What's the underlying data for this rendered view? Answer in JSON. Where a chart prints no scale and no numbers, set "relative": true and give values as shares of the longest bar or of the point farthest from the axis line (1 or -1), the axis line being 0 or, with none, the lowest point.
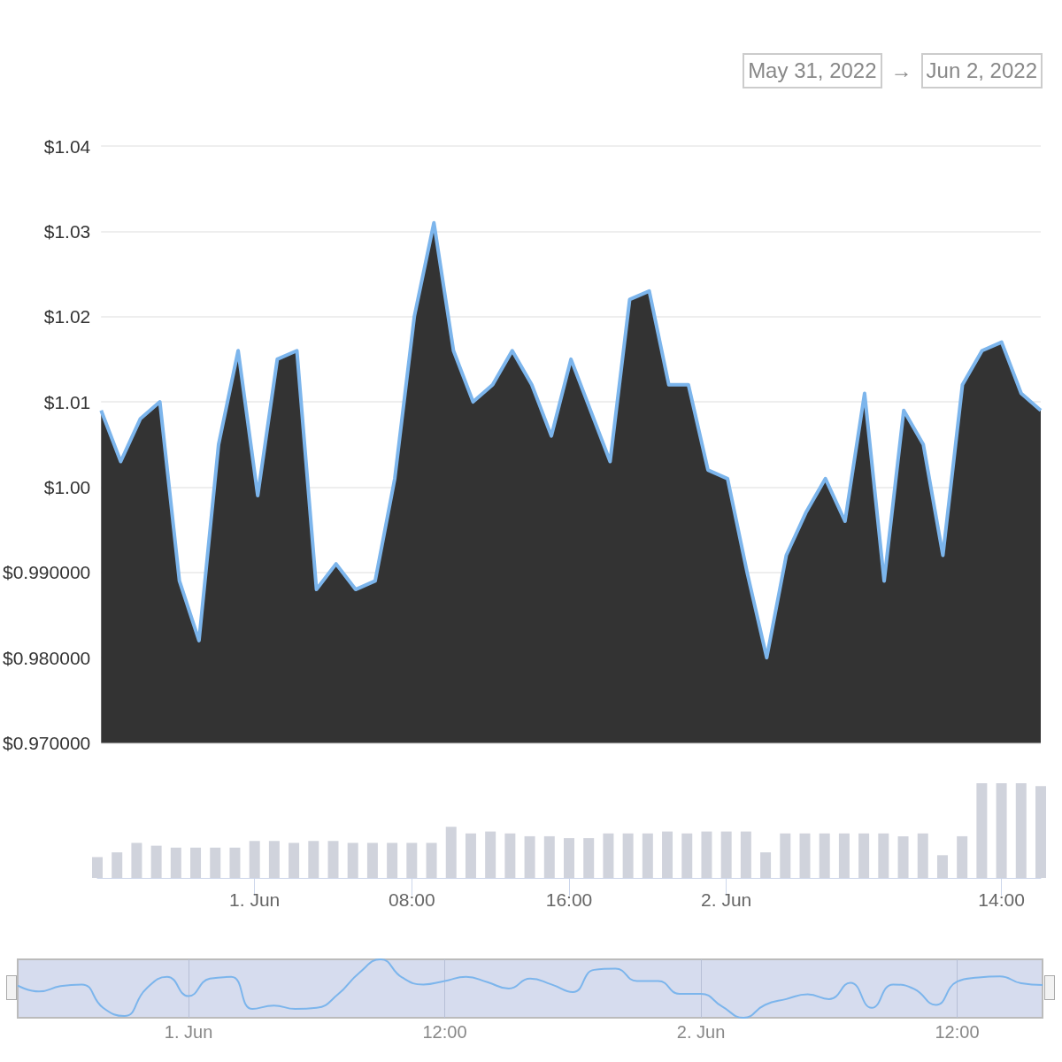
{
  "chart_data": [
    {
      "type": "area",
      "annotations": [
        "May 31, 2022",
        "→",
        "Jun 2, 2022"
      ],
      "x": [
        "2022-05-31T16:00",
        "2022-05-31T17:00",
        "2022-05-31T18:00",
        "2022-05-31T19:00",
        "2022-05-31T20:00",
        "2022-05-31T21:00",
        "2022-05-31T22:00",
        "2022-05-31T23:00",
        "2022-06-01T00:00",
        "2022-06-01T01:00",
        "2022-06-01T02:00",
        "2022-06-01T03:00",
        "2022-06-01T04:00",
        "2022-06-01T05:00",
        "2022-06-01T06:00",
        "2022-06-01T07:00",
        "2022-06-01T08:00",
        "2022-06-01T09:00",
        "2022-06-01T10:00",
        "2022-06-01T11:00",
        "2022-06-01T12:00",
        "2022-06-01T13:00",
        "2022-06-01T14:00",
        "2022-06-01T15:00",
        "2022-06-01T16:00",
        "2022-06-01T17:00",
        "2022-06-01T18:00",
        "2022-06-01T19:00",
        "2022-06-01T20:00",
        "2022-06-01T21:00",
        "2022-06-01T22:00",
        "2022-06-01T23:00",
        "2022-06-02T00:00",
        "2022-06-02T01:00",
        "2022-06-02T02:00",
        "2022-06-02T03:00",
        "2022-06-02T04:00",
        "2022-06-02T05:00",
        "2022-06-02T06:00",
        "2022-06-02T07:00",
        "2022-06-02T08:00",
        "2022-06-02T09:00",
        "2022-06-02T10:00",
        "2022-06-02T11:00",
        "2022-06-02T12:00",
        "2022-06-02T13:00",
        "2022-06-02T14:00",
        "2022-06-02T15:00",
        "2022-06-02T16:00"
      ],
      "series": [
        {
          "color": "#7cb5ec",
          "values": [
            1.009,
            1.003,
            1.008,
            1.01,
            0.989,
            0.982,
            1.005,
            1.016,
            0.999,
            1.015,
            1.016,
            0.988,
            0.991,
            0.988,
            0.989,
            1.001,
            1.02,
            1.031,
            1.016,
            1.01,
            1.012,
            1.016,
            1.012,
            1.006,
            1.015,
            1.009,
            1.003,
            1.022,
            1.023,
            1.012,
            1.012,
            1.002,
            1.001,
            0.99,
            0.98,
            0.992,
            0.997,
            1.001,
            0.996,
            1.011,
            0.989,
            1.009,
            1.005,
            0.992,
            1.012,
            1.016,
            1.017,
            1.011,
            1.009
          ]
        }
      ],
      "xlim": [
        "2022-05-31T16:00",
        "2022-06-02T16:00"
      ],
      "ylim": [
        0.97,
        1.04
      ],
      "yticks": [
        {
          "value": 0.97,
          "label": "$0.970000"
        },
        {
          "value": 0.98,
          "label": "$0.980000"
        },
        {
          "value": 0.99,
          "label": "$0.990000"
        },
        {
          "value": 1.0,
          "label": "$1.00"
        },
        {
          "value": 1.01,
          "label": "$1.01"
        },
        {
          "value": 1.02,
          "label": "$1.02"
        },
        {
          "value": 1.03,
          "label": "$1.03"
        },
        {
          "value": 1.04,
          "label": "$1.04"
        }
      ],
      "grid": "y",
      "tick_labels": "y"
    },
    {
      "type": "bar",
      "relative": true,
      "x": [
        "2022-05-31T16:00",
        "2022-05-31T17:00",
        "2022-05-31T18:00",
        "2022-05-31T19:00",
        "2022-05-31T20:00",
        "2022-05-31T21:00",
        "2022-05-31T22:00",
        "2022-05-31T23:00",
        "2022-06-01T00:00",
        "2022-06-01T01:00",
        "2022-06-01T02:00",
        "2022-06-01T03:00",
        "2022-06-01T04:00",
        "2022-06-01T05:00",
        "2022-06-01T06:00",
        "2022-06-01T07:00",
        "2022-06-01T08:00",
        "2022-06-01T09:00",
        "2022-06-01T10:00",
        "2022-06-01T11:00",
        "2022-06-01T12:00",
        "2022-06-01T13:00",
        "2022-06-01T14:00",
        "2022-06-01T15:00",
        "2022-06-01T16:00",
        "2022-06-01T17:00",
        "2022-06-01T18:00",
        "2022-06-01T19:00",
        "2022-06-01T20:00",
        "2022-06-01T21:00",
        "2022-06-01T22:00",
        "2022-06-01T23:00",
        "2022-06-02T00:00",
        "2022-06-02T01:00",
        "2022-06-02T02:00",
        "2022-06-02T03:00",
        "2022-06-02T04:00",
        "2022-06-02T05:00",
        "2022-06-02T06:00",
        "2022-06-02T07:00",
        "2022-06-02T08:00",
        "2022-06-02T09:00",
        "2022-06-02T10:00",
        "2022-06-02T11:00",
        "2022-06-02T12:00",
        "2022-06-02T13:00",
        "2022-06-02T14:00",
        "2022-06-02T15:00",
        "2022-06-02T16:00"
      ],
      "series": [
        {
          "color": "#d0d3dc",
          "values": [
            0.22,
            0.27,
            0.37,
            0.34,
            0.32,
            0.32,
            0.32,
            0.32,
            0.39,
            0.39,
            0.37,
            0.39,
            0.39,
            0.37,
            0.37,
            0.37,
            0.37,
            0.37,
            0.54,
            0.47,
            0.49,
            0.47,
            0.44,
            0.44,
            0.42,
            0.42,
            0.47,
            0.47,
            0.47,
            0.49,
            0.47,
            0.49,
            0.49,
            0.49,
            0.27,
            0.47,
            0.47,
            0.47,
            0.47,
            0.47,
            0.47,
            0.44,
            0.47,
            0.24,
            0.44,
            1,
            1,
            1,
            0.97
          ]
        }
      ],
      "xlim": [
        "2022-05-31T16:00",
        "2022-06-02T16:00"
      ],
      "xticks": [
        {
          "value": "2022-06-01T00:00",
          "label": "1. Jun"
        },
        {
          "value": "2022-06-01T08:00",
          "label": "08:00"
        },
        {
          "value": "2022-06-01T16:00",
          "label": "16:00"
        },
        {
          "value": "2022-06-02T00:00",
          "label": "2. Jun"
        },
        {
          "value": "2022-06-02T14:00",
          "label": "14:00"
        }
      ],
      "tick_labels": "x"
    },
    {
      "type": "line",
      "relative": true,
      "x": [
        "2022-05-31T16:00",
        "2022-05-31T17:00",
        "2022-05-31T18:00",
        "2022-05-31T19:00",
        "2022-05-31T20:00",
        "2022-05-31T21:00",
        "2022-05-31T22:00",
        "2022-05-31T23:00",
        "2022-06-01T00:00",
        "2022-06-01T01:00",
        "2022-06-01T02:00",
        "2022-06-01T03:00",
        "2022-06-01T04:00",
        "2022-06-01T05:00",
        "2022-06-01T06:00",
        "2022-06-01T07:00",
        "2022-06-01T08:00",
        "2022-06-01T09:00",
        "2022-06-01T10:00",
        "2022-06-01T11:00",
        "2022-06-01T12:00",
        "2022-06-01T13:00",
        "2022-06-01T14:00",
        "2022-06-01T15:00",
        "2022-06-01T16:00",
        "2022-06-01T17:00",
        "2022-06-01T18:00",
        "2022-06-01T19:00",
        "2022-06-01T20:00",
        "2022-06-01T21:00",
        "2022-06-01T22:00",
        "2022-06-01T23:00",
        "2022-06-02T00:00",
        "2022-06-02T01:00",
        "2022-06-02T02:00",
        "2022-06-02T03:00",
        "2022-06-02T04:00",
        "2022-06-02T05:00",
        "2022-06-02T06:00",
        "2022-06-02T07:00",
        "2022-06-02T08:00",
        "2022-06-02T09:00",
        "2022-06-02T10:00",
        "2022-06-02T11:00",
        "2022-06-02T12:00",
        "2022-06-02T13:00",
        "2022-06-02T14:00",
        "2022-06-02T15:00",
        "2022-06-02T16:00"
      ],
      "series": [
        {
          "color": "#7cb5ec",
          "values": [
            0.55,
            0.45,
            0.54,
            0.57,
            0.17,
            0.03,
            0.49,
            0.7,
            0.37,
            0.67,
            0.7,
            0.15,
            0.21,
            0.15,
            0.17,
            0.4,
            0.77,
            1,
            0.69,
            0.57,
            0.63,
            0.7,
            0.61,
            0.5,
            0.67,
            0.57,
            0.44,
            0.82,
            0.84,
            0.63,
            0.63,
            0.41,
            0.41,
            0.19,
            0,
            0.22,
            0.32,
            0.4,
            0.32,
            0.6,
            0.17,
            0.57,
            0.49,
            0.22,
            0.62,
            0.69,
            0.71,
            0.59,
            0.56
          ]
        }
      ],
      "xlim": [
        "2022-05-31T16:00",
        "2022-06-02T16:00"
      ],
      "xticks": [
        {
          "value": "2022-06-01T00:00",
          "label": "1. Jun"
        },
        {
          "value": "2022-06-01T12:00",
          "label": "12:00"
        },
        {
          "value": "2022-06-02T00:00",
          "label": "2. Jun"
        },
        {
          "value": "2022-06-02T12:00",
          "label": "12:00"
        }
      ],
      "grid": "x",
      "tick_labels": "x"
    }
  ]
}
